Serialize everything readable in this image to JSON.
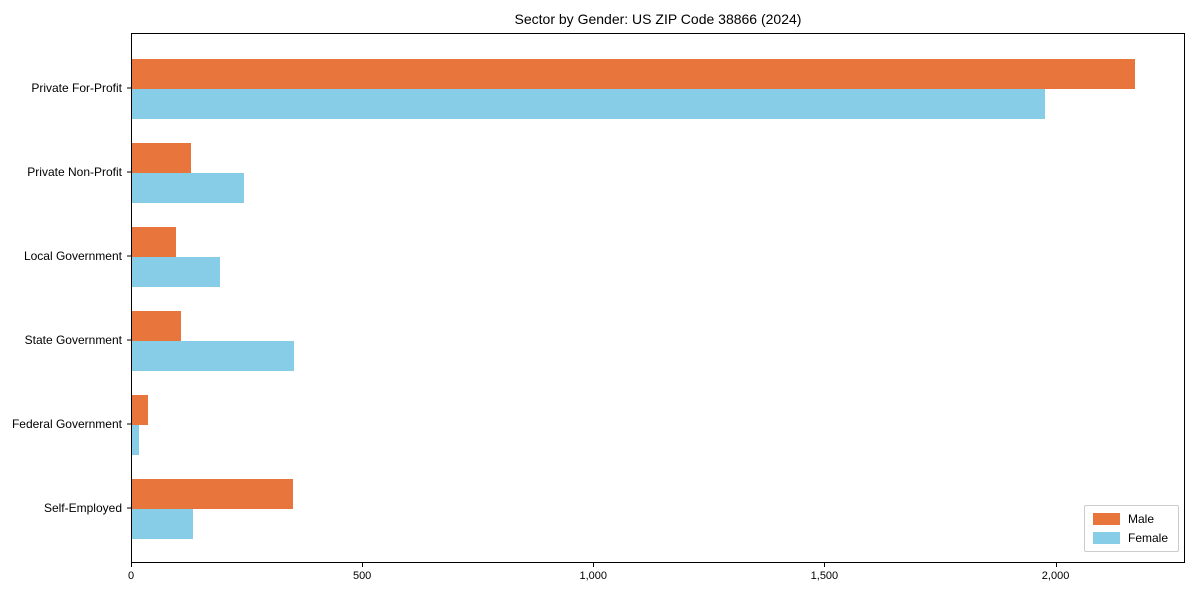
{
  "chart_data": {
    "type": "bar",
    "orientation": "horizontal",
    "title": "Sector by Gender: US ZIP Code 38866 (2024)",
    "categories": [
      "Private For-Profit",
      "Private Non-Profit",
      "Local Government",
      "State Government",
      "Federal Government",
      "Self-Employed"
    ],
    "series": [
      {
        "name": "Male",
        "color": "#E8763C",
        "values": [
          2170,
          128,
          95,
          106,
          35,
          348
        ]
      },
      {
        "name": "Female",
        "color": "#87CDE8",
        "values": [
          1976,
          242,
          190,
          350,
          15,
          132
        ]
      }
    ],
    "xlabel": "",
    "ylabel": "",
    "xlim": [
      0,
      2280
    ],
    "x_tick_values": [
      0,
      500,
      1000,
      1500,
      2000
    ],
    "x_tick_labels": [
      "0",
      "500",
      "1,000",
      "1,500",
      "2,000"
    ],
    "grid": false,
    "legend_position": "lower right",
    "background_color": "#ffffff",
    "axis_color": "#000000"
  }
}
